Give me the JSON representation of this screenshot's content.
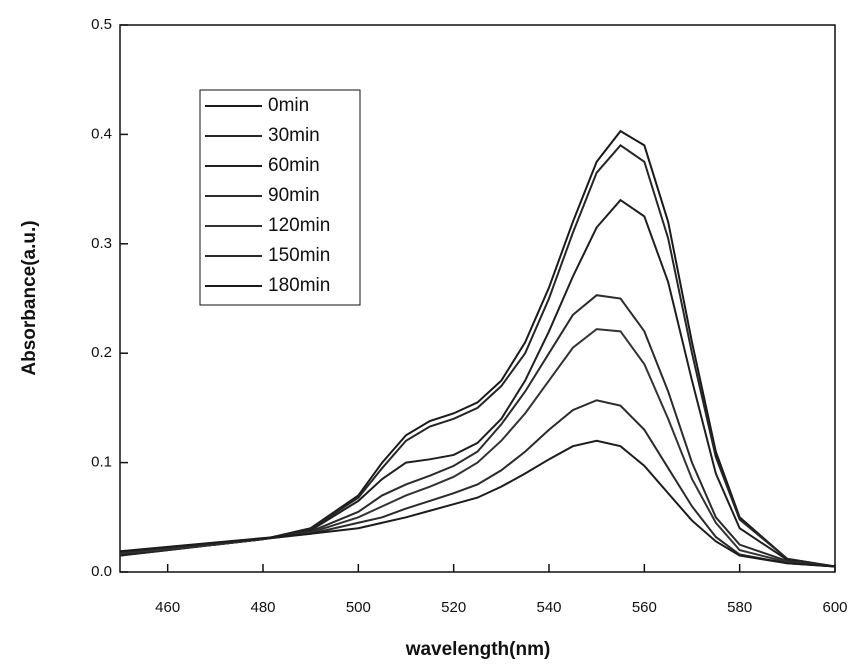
{
  "chart_data": {
    "type": "line",
    "x_label": "wavelength(nm)",
    "y_label": "Absorbance(a.u.)",
    "x": [
      450,
      460,
      470,
      480,
      490,
      500,
      505,
      510,
      515,
      520,
      525,
      530,
      535,
      540,
      545,
      550,
      555,
      560,
      565,
      570,
      575,
      580,
      590,
      600
    ],
    "xlim": [
      450,
      600
    ],
    "xticks": [
      460,
      480,
      500,
      520,
      540,
      560,
      580,
      600
    ],
    "ylim": [
      0,
      0.5
    ],
    "yticks": [
      {
        "value": 0,
        "label": "0.0"
      },
      0.1,
      0.2,
      0.3,
      0.4,
      0.5
    ],
    "legend": "upper-left",
    "series": [
      {
        "name": "0min",
        "color": "#1a1a1a",
        "values": [
          0.015,
          0.02,
          0.025,
          0.03,
          0.04,
          0.07,
          0.1,
          0.125,
          0.138,
          0.145,
          0.155,
          0.175,
          0.21,
          0.26,
          0.32,
          0.375,
          0.403,
          0.39,
          0.32,
          0.21,
          0.11,
          0.05,
          0.012,
          0.005
        ]
      },
      {
        "name": "30min",
        "color": "#262626",
        "values": [
          0.015,
          0.02,
          0.025,
          0.03,
          0.039,
          0.068,
          0.095,
          0.12,
          0.133,
          0.14,
          0.15,
          0.17,
          0.2,
          0.25,
          0.31,
          0.365,
          0.39,
          0.375,
          0.305,
          0.2,
          0.105,
          0.048,
          0.012,
          0.005
        ]
      },
      {
        "name": "60min",
        "color": "#1f1f1f",
        "values": [
          0.016,
          0.021,
          0.025,
          0.03,
          0.038,
          0.065,
          0.085,
          0.1,
          0.103,
          0.107,
          0.118,
          0.14,
          0.175,
          0.22,
          0.27,
          0.315,
          0.34,
          0.325,
          0.265,
          0.175,
          0.09,
          0.04,
          0.011,
          0.005
        ]
      },
      {
        "name": "90min",
        "color": "#2b2b2b",
        "values": [
          0.017,
          0.021,
          0.025,
          0.03,
          0.037,
          0.055,
          0.07,
          0.08,
          0.088,
          0.097,
          0.11,
          0.135,
          0.165,
          0.2,
          0.235,
          0.253,
          0.25,
          0.22,
          0.165,
          0.1,
          0.05,
          0.025,
          0.01,
          0.005
        ]
      },
      {
        "name": "120min",
        "color": "#333333",
        "values": [
          0.017,
          0.021,
          0.025,
          0.03,
          0.036,
          0.05,
          0.06,
          0.07,
          0.078,
          0.087,
          0.1,
          0.12,
          0.145,
          0.175,
          0.205,
          0.222,
          0.22,
          0.19,
          0.14,
          0.085,
          0.045,
          0.02,
          0.009,
          0.005
        ]
      },
      {
        "name": "150min",
        "color": "#2a2a2a",
        "values": [
          0.018,
          0.022,
          0.026,
          0.03,
          0.035,
          0.045,
          0.05,
          0.058,
          0.065,
          0.072,
          0.08,
          0.093,
          0.11,
          0.13,
          0.148,
          0.157,
          0.152,
          0.13,
          0.095,
          0.06,
          0.032,
          0.016,
          0.008,
          0.005
        ]
      },
      {
        "name": "180min",
        "color": "#1c1c1c",
        "values": [
          0.019,
          0.023,
          0.027,
          0.031,
          0.035,
          0.04,
          0.045,
          0.05,
          0.056,
          0.062,
          0.068,
          0.078,
          0.09,
          0.103,
          0.115,
          0.12,
          0.115,
          0.097,
          0.072,
          0.047,
          0.028,
          0.015,
          0.008,
          0.005
        ]
      }
    ]
  }
}
